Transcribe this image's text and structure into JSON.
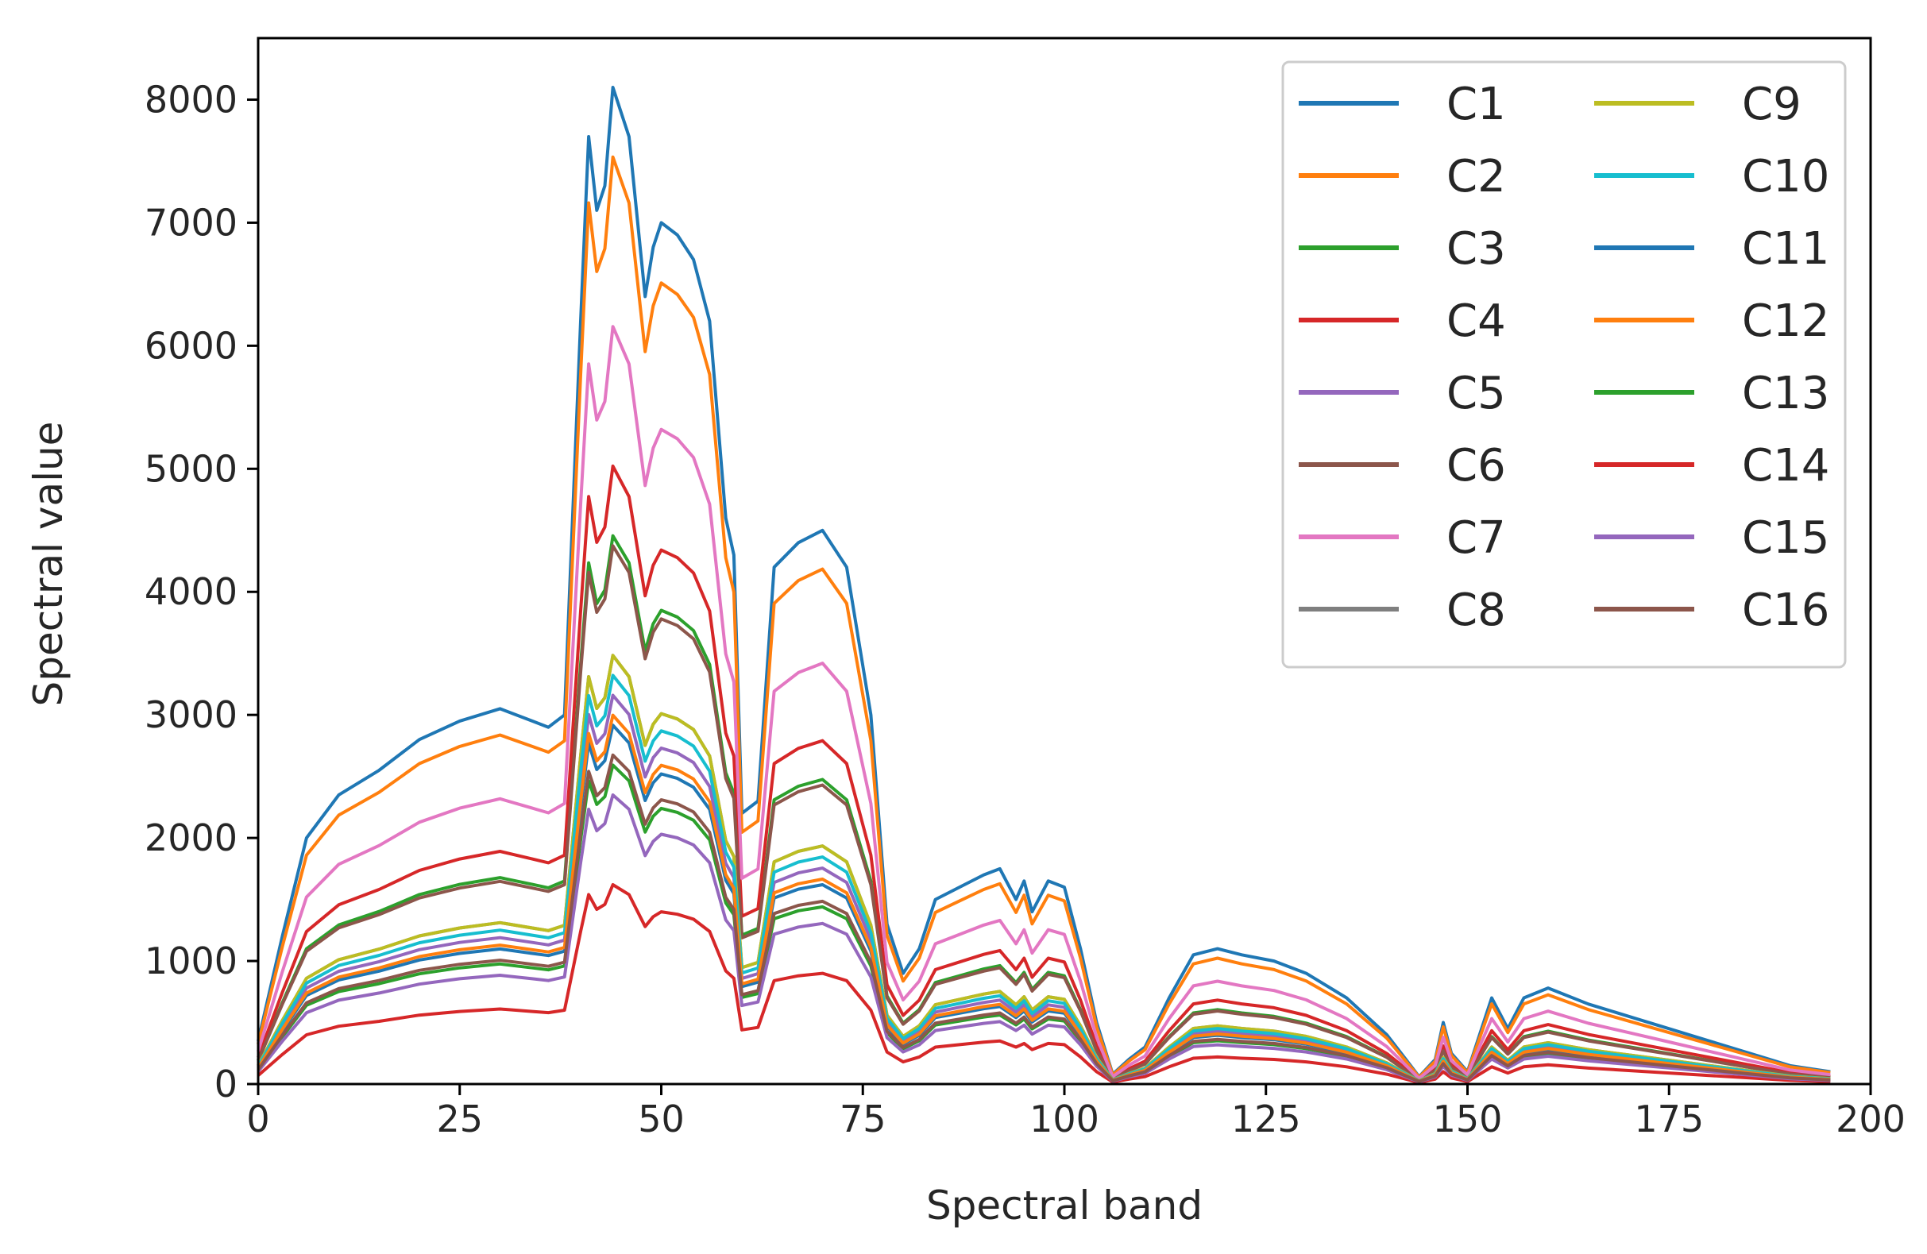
{
  "chart_data": {
    "type": "line",
    "title": "",
    "xlabel": "Spectral band",
    "ylabel": "Spectral value",
    "xlim": [
      0,
      200
    ],
    "ylim": [
      0,
      8500
    ],
    "xticks": [
      0,
      25,
      50,
      75,
      100,
      125,
      150,
      175,
      200
    ],
    "yticks": [
      0,
      1000,
      2000,
      3000,
      4000,
      5000,
      6000,
      7000,
      8000
    ],
    "grid": false,
    "legend": {
      "placement": "top-right",
      "columns": 2
    },
    "series": [
      {
        "name": "C1",
        "color": "#1f77b4",
        "scale": 1.0
      },
      {
        "name": "C2",
        "color": "#ff7f0e",
        "scale": 0.93
      },
      {
        "name": "C3",
        "color": "#2ca02c",
        "scale": 0.55
      },
      {
        "name": "C4",
        "color": "#d62728",
        "scale": 0.62
      },
      {
        "name": "C5",
        "color": "#9467bd",
        "scale": 0.39
      },
      {
        "name": "C6",
        "color": "#8c564b",
        "scale": 0.54
      },
      {
        "name": "C7",
        "color": "#e377c2",
        "scale": 0.76
      },
      {
        "name": "C8",
        "color": "#7f7f7f",
        "scale": 0.43
      },
      {
        "name": "C9",
        "color": "#bcbd22",
        "scale": 0.43
      },
      {
        "name": "C10",
        "color": "#17becf",
        "scale": 0.41
      },
      {
        "name": "C11",
        "color": "#1f77b4",
        "scale": 0.36
      },
      {
        "name": "C12",
        "color": "#ff7f0e",
        "scale": 0.37
      },
      {
        "name": "C13",
        "color": "#2ca02c",
        "scale": 0.32
      },
      {
        "name": "C14",
        "color": "#d62728",
        "scale": 0.2
      },
      {
        "name": "C15",
        "color": "#9467bd",
        "scale": 0.29
      },
      {
        "name": "C16",
        "color": "#8c564b",
        "scale": 0.33
      }
    ],
    "base_profile": {
      "x": [
        0,
        3,
        6,
        10,
        15,
        20,
        25,
        30,
        34,
        36,
        38,
        40,
        41,
        42,
        43,
        44,
        46,
        48,
        49,
        50,
        52,
        54,
        56,
        58,
        59,
        60,
        62,
        64,
        67,
        70,
        73,
        76,
        78,
        80,
        82,
        84,
        87,
        90,
        92,
        94,
        95,
        96,
        98,
        100,
        102,
        104,
        106,
        108,
        110,
        113,
        116,
        119,
        122,
        126,
        130,
        135,
        140,
        144,
        146,
        147,
        148,
        150,
        152,
        153,
        155,
        157,
        160,
        165,
        170,
        175,
        180,
        185,
        190,
        195
      ],
      "y": [
        350,
        1200,
        2000,
        2350,
        2550,
        2800,
        2950,
        3050,
        2950,
        2900,
        3000,
        6200,
        7700,
        7100,
        7300,
        8100,
        7700,
        6400,
        6800,
        7000,
        6900,
        6700,
        6200,
        4600,
        4300,
        2200,
        2300,
        4200,
        4400,
        4500,
        4200,
        3000,
        1300,
        900,
        1100,
        1500,
        1600,
        1700,
        1750,
        1500,
        1650,
        1400,
        1650,
        1600,
        1100,
        500,
        80,
        200,
        300,
        700,
        1050,
        1100,
        1050,
        1000,
        900,
        700,
        400,
        60,
        200,
        500,
        250,
        100,
        500,
        700,
        450,
        700,
        780,
        650,
        550,
        450,
        350,
        250,
        150,
        100
      ]
    }
  }
}
